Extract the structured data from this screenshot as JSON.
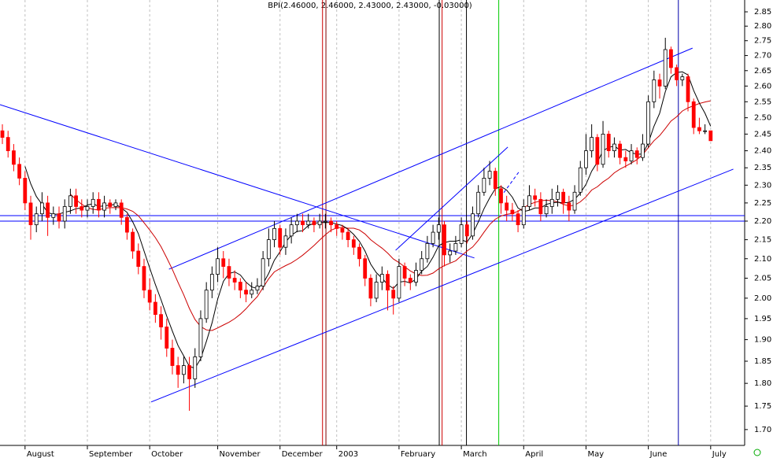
{
  "chart_data": {
    "type": "candlestick",
    "title": "BPI(2.46000, 2.46000, 2.43000, 2.43000, -0.03000)",
    "log_scale": true,
    "up_color": "#ffffff",
    "down_color": "#ff0000",
    "open": [
      2.46,
      2.44,
      2.4,
      2.36,
      2.32,
      2.25,
      2.19,
      2.22,
      2.25,
      2.21,
      2.22,
      2.2,
      2.24,
      2.27,
      2.24,
      2.23,
      2.24,
      2.26,
      2.23,
      2.25,
      2.24,
      2.25,
      2.21,
      2.17,
      2.12,
      2.08,
      2.02,
      1.99,
      1.96,
      1.93,
      1.88,
      1.84,
      1.82,
      1.84,
      1.81,
      1.86,
      1.95,
      2.02,
      2.06,
      2.1,
      2.08,
      2.05,
      2.04,
      2.02,
      2.01,
      2.02,
      2.03,
      2.1,
      2.15,
      2.18,
      2.13,
      2.16,
      2.19,
      2.2,
      2.19,
      2.2,
      2.19,
      2.2,
      2.2,
      2.19,
      2.18,
      2.17,
      2.15,
      2.13,
      2.1,
      2.05,
      2.0,
      2.04,
      2.06,
      2.02,
      2.0,
      2.08,
      2.05,
      2.04,
      2.07,
      2.1,
      2.14,
      2.17,
      2.19,
      2.11,
      2.12,
      2.14,
      2.19,
      2.16,
      2.22,
      2.28,
      2.32,
      2.34,
      2.29,
      2.25,
      2.23,
      2.22,
      2.19,
      2.24,
      2.27,
      2.26,
      2.22,
      2.24,
      2.26,
      2.28,
      2.25,
      2.23,
      2.28,
      2.35,
      2.4,
      2.44,
      2.36,
      2.45,
      2.4,
      2.42,
      2.38,
      2.37,
      2.4,
      2.38,
      2.42,
      2.55,
      2.62,
      2.6,
      2.72,
      2.66,
      2.62,
      2.63,
      2.55,
      2.47,
      2.46,
      2.46
    ],
    "high": [
      2.48,
      2.46,
      2.42,
      2.38,
      2.34,
      2.27,
      2.24,
      2.28,
      2.27,
      2.24,
      2.24,
      2.26,
      2.29,
      2.29,
      2.26,
      2.26,
      2.28,
      2.28,
      2.27,
      2.26,
      2.26,
      2.26,
      2.22,
      2.18,
      2.14,
      2.1,
      2.05,
      2.01,
      1.98,
      1.95,
      1.9,
      1.86,
      1.86,
      1.86,
      1.88,
      1.97,
      2.04,
      2.08,
      2.13,
      2.12,
      2.1,
      2.07,
      2.05,
      2.04,
      2.04,
      2.05,
      2.12,
      2.18,
      2.2,
      2.19,
      2.18,
      2.21,
      2.22,
      2.22,
      2.22,
      2.21,
      2.22,
      2.22,
      2.21,
      2.2,
      2.19,
      2.18,
      2.16,
      2.14,
      2.11,
      2.06,
      2.06,
      2.08,
      2.07,
      2.03,
      2.1,
      2.09,
      2.06,
      2.09,
      2.12,
      2.16,
      2.19,
      2.21,
      2.2,
      2.14,
      2.16,
      2.21,
      2.2,
      2.24,
      2.3,
      2.35,
      2.37,
      2.35,
      2.3,
      2.27,
      2.25,
      2.23,
      2.26,
      2.3,
      2.29,
      2.28,
      2.26,
      2.29,
      2.3,
      2.29,
      2.27,
      2.3,
      2.37,
      2.45,
      2.48,
      2.45,
      2.49,
      2.46,
      2.44,
      2.43,
      2.4,
      2.42,
      2.41,
      2.45,
      2.57,
      2.65,
      2.64,
      2.76,
      2.73,
      2.67,
      2.64,
      2.64,
      2.56,
      2.5,
      2.48,
      2.46
    ],
    "low": [
      2.42,
      2.38,
      2.34,
      2.3,
      2.23,
      2.15,
      2.17,
      2.2,
      2.16,
      2.19,
      2.18,
      2.18,
      2.22,
      2.22,
      2.21,
      2.21,
      2.22,
      2.21,
      2.21,
      2.22,
      2.23,
      2.19,
      2.15,
      2.1,
      2.06,
      2.0,
      1.97,
      1.94,
      1.9,
      1.86,
      1.82,
      1.79,
      1.8,
      1.74,
      1.79,
      1.85,
      1.94,
      2.0,
      2.04,
      2.05,
      2.03,
      2.02,
      2.0,
      1.99,
      2.0,
      2.01,
      2.02,
      2.08,
      2.13,
      2.11,
      2.11,
      2.14,
      2.17,
      2.17,
      2.18,
      2.17,
      2.18,
      2.18,
      2.17,
      2.16,
      2.15,
      2.13,
      2.11,
      2.08,
      2.03,
      1.98,
      1.99,
      2.02,
      1.97,
      1.96,
      1.99,
      2.03,
      2.02,
      2.03,
      2.06,
      2.09,
      2.13,
      2.15,
      2.08,
      2.09,
      2.11,
      2.13,
      2.14,
      2.15,
      2.21,
      2.27,
      2.3,
      2.27,
      2.22,
      2.2,
      2.2,
      2.17,
      2.18,
      2.23,
      2.24,
      2.2,
      2.21,
      2.22,
      2.24,
      2.22,
      2.2,
      2.22,
      2.27,
      2.33,
      2.38,
      2.34,
      2.35,
      2.38,
      2.38,
      2.36,
      2.35,
      2.36,
      2.36,
      2.37,
      2.41,
      2.53,
      2.56,
      2.59,
      2.64,
      2.6,
      2.6,
      2.52,
      2.45,
      2.45,
      2.45,
      2.43
    ],
    "close": [
      2.44,
      2.4,
      2.36,
      2.32,
      2.25,
      2.19,
      2.22,
      2.25,
      2.21,
      2.22,
      2.2,
      2.24,
      2.27,
      2.24,
      2.23,
      2.24,
      2.26,
      2.23,
      2.25,
      2.24,
      2.25,
      2.21,
      2.17,
      2.12,
      2.08,
      2.02,
      1.99,
      1.96,
      1.93,
      1.88,
      1.84,
      1.82,
      1.84,
      1.81,
      1.86,
      1.95,
      2.02,
      2.06,
      2.1,
      2.08,
      2.05,
      2.04,
      2.02,
      2.01,
      2.02,
      2.03,
      2.1,
      2.15,
      2.18,
      2.13,
      2.16,
      2.19,
      2.2,
      2.19,
      2.2,
      2.19,
      2.2,
      2.2,
      2.19,
      2.18,
      2.17,
      2.15,
      2.13,
      2.1,
      2.05,
      2.0,
      2.04,
      2.06,
      2.02,
      2.0,
      2.08,
      2.05,
      2.04,
      2.07,
      2.1,
      2.14,
      2.17,
      2.19,
      2.11,
      2.12,
      2.14,
      2.19,
      2.16,
      2.22,
      2.28,
      2.32,
      2.34,
      2.29,
      2.25,
      2.23,
      2.22,
      2.19,
      2.24,
      2.27,
      2.26,
      2.22,
      2.24,
      2.26,
      2.28,
      2.25,
      2.23,
      2.28,
      2.35,
      2.4,
      2.44,
      2.36,
      2.45,
      2.4,
      2.42,
      2.38,
      2.37,
      2.4,
      2.38,
      2.42,
      2.55,
      2.62,
      2.6,
      2.72,
      2.66,
      2.62,
      2.63,
      2.55,
      2.47,
      2.46,
      2.46,
      2.43
    ],
    "xlim": [
      -0.42,
      131
    ],
    "ylim": [
      1.667,
      2.892
    ],
    "yticks": [
      {
        "value": 1.7,
        "label": "1.70"
      },
      1.75,
      {
        "value": 1.8,
        "label": "1.80"
      },
      1.85,
      {
        "value": 1.9,
        "label": "1.90"
      },
      1.95,
      {
        "value": 2.0,
        "label": "2.00"
      },
      2.05,
      {
        "value": 2.1,
        "label": "2.10"
      },
      2.15,
      {
        "value": 2.2,
        "label": "2.20"
      },
      2.25,
      {
        "value": 2.3,
        "label": "2.30"
      },
      2.35,
      {
        "value": 2.4,
        "label": "2.40"
      },
      2.45,
      {
        "value": 2.5,
        "label": "2.50"
      },
      2.55,
      {
        "value": 2.6,
        "label": "2.60"
      },
      2.65,
      {
        "value": 2.7,
        "label": "2.70"
      },
      2.75,
      {
        "value": 2.8,
        "label": "2.80"
      },
      2.85
    ],
    "xticks": [
      {
        "value": 4,
        "label": "August"
      },
      {
        "value": 15,
        "label": "September"
      },
      {
        "value": 26,
        "label": "October"
      },
      {
        "value": 38,
        "label": "November"
      },
      {
        "value": 49,
        "label": "December"
      },
      {
        "value": 59,
        "label": "2003"
      },
      {
        "value": 70,
        "label": "February"
      },
      {
        "value": 81,
        "label": "March"
      },
      {
        "value": 92,
        "label": "April"
      },
      {
        "value": 103,
        "label": "May"
      },
      {
        "value": 114,
        "label": "June"
      },
      {
        "value": 125,
        "label": "July"
      }
    ],
    "trendline_color": "#0000ff",
    "trendlines": [
      [
        -0.42,
        2.541,
        83.3,
        2.102
      ],
      [
        26.25,
        1.759,
        129.0,
        2.346
      ],
      [
        29.4,
        2.073,
        121.8,
        2.725
      ],
      [
        69.4,
        2.122,
        89.2,
        2.411
      ]
    ],
    "dashed_trendlines": [
      [
        88.5,
        2.279,
        91.2,
        2.339
      ]
    ],
    "hlines": [
      2.215,
      2.2
    ],
    "vlines": [
      {
        "x": 56.5,
        "color": "#cc0000"
      },
      {
        "x": 57.1,
        "color": "#800000"
      },
      {
        "x": 77.1,
        "color": "#000000"
      },
      {
        "x": 77.6,
        "color": "#cc0000"
      },
      {
        "x": 81.9,
        "color": "#000000"
      },
      {
        "x": 87.6,
        "color": "#00cc00"
      },
      {
        "x": 119.3,
        "color": "#0000aa"
      }
    ]
  }
}
